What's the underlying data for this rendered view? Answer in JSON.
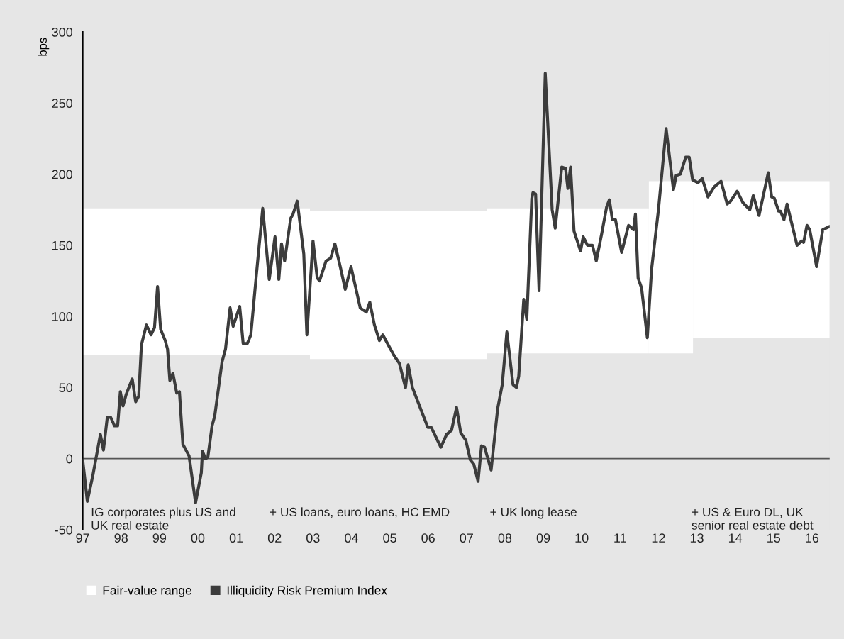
{
  "chart_data": {
    "type": "line",
    "ylabel": "bps",
    "xlim": [
      1997,
      2016.46
    ],
    "xticks": [
      {
        "value": 1997,
        "label": "97"
      },
      {
        "value": 1998,
        "label": "98"
      },
      {
        "value": 1999,
        "label": "99"
      },
      {
        "value": 2000,
        "label": "00"
      },
      {
        "value": 2001,
        "label": "01"
      },
      {
        "value": 2002,
        "label": "02"
      },
      {
        "value": 2003,
        "label": "03"
      },
      {
        "value": 2004,
        "label": "04"
      },
      {
        "value": 2005,
        "label": "05"
      },
      {
        "value": 2006,
        "label": "06"
      },
      {
        "value": 2007,
        "label": "07"
      },
      {
        "value": 2008,
        "label": "08"
      },
      {
        "value": 2009,
        "label": "09"
      },
      {
        "value": 2010,
        "label": "10"
      },
      {
        "value": 2011,
        "label": "11"
      },
      {
        "value": 2012,
        "label": "12"
      },
      {
        "value": 2013,
        "label": "13"
      },
      {
        "value": 2014,
        "label": "14"
      },
      {
        "value": 2015,
        "label": "15"
      },
      {
        "value": 2016,
        "label": "16"
      }
    ],
    "ylim": [
      -50,
      300
    ],
    "yticks": [
      -50,
      0,
      50,
      100,
      150,
      200,
      250,
      300
    ],
    "grid": false,
    "legend": "bottom left",
    "marker": "none",
    "line_style": "solid",
    "ref_lines": [
      {
        "axis": "y",
        "value": 0,
        "color": "#555555"
      }
    ],
    "annotations": [
      "IG corporates plus US and\nUK real estate",
      "+ US loans, euro loans, HC EMD",
      "+ UK long lease",
      "+ US & Euro DL, UK\nsenior real estate debt"
    ],
    "series": [
      {
        "name": "Fair-value range",
        "type": "bar",
        "color": "#ffffff",
        "x": [
          1999.96,
          2005.23,
          2009.645,
          2012.325,
          2014.68
        ],
        "base": [
          73,
          70,
          74,
          74,
          85
        ],
        "values": [
          103,
          104,
          102,
          121,
          110
        ]
      },
      {
        "name": "Illiquidity Risk Premium Index",
        "color": "#3c3c3c",
        "x": [
          1997.0,
          1997.12,
          1997.27,
          1997.46,
          1997.54,
          1997.64,
          1997.73,
          1997.83,
          1997.91,
          1997.98,
          1998.05,
          1998.13,
          1998.29,
          1998.38,
          1998.46,
          1998.53,
          1998.66,
          1998.78,
          1998.87,
          1998.95,
          1999.03,
          1999.15,
          1999.21,
          1999.27,
          1999.35,
          1999.45,
          1999.52,
          1999.61,
          1999.77,
          1999.94,
          2000.09,
          2000.12,
          2000.2,
          2000.26,
          2000.37,
          2000.44,
          2000.63,
          2000.72,
          2000.84,
          2000.92,
          2001.09,
          2001.18,
          2001.29,
          2001.38,
          2001.52,
          2001.69,
          2001.86,
          2002.01,
          2002.11,
          2002.18,
          2002.26,
          2002.42,
          2002.48,
          2002.59,
          2002.76,
          2002.84,
          2003.0,
          2003.11,
          2003.17,
          2003.34,
          2003.46,
          2003.57,
          2003.71,
          2003.84,
          2003.99,
          2004.23,
          2004.39,
          2004.48,
          2004.6,
          2004.73,
          2004.82,
          2005.1,
          2005.25,
          2005.41,
          2005.48,
          2005.59,
          2005.99,
          2006.08,
          2006.33,
          2006.48,
          2006.61,
          2006.74,
          2006.85,
          2006.98,
          2007.1,
          2007.19,
          2007.3,
          2007.39,
          2007.47,
          2007.64,
          2007.81,
          2007.93,
          2008.05,
          2008.21,
          2008.3,
          2008.36,
          2008.49,
          2008.57,
          2008.7,
          2008.73,
          2008.8,
          2008.89,
          2009.05,
          2009.23,
          2009.31,
          2009.48,
          2009.58,
          2009.64,
          2009.71,
          2009.8,
          2009.97,
          2010.04,
          2010.15,
          2010.28,
          2010.38,
          2010.52,
          2010.65,
          2010.72,
          2010.8,
          2010.88,
          2011.04,
          2011.22,
          2011.35,
          2011.4,
          2011.47,
          2011.56,
          2011.71,
          2011.82,
          2012.0,
          2012.2,
          2012.39,
          2012.46,
          2012.57,
          2012.71,
          2012.8,
          2012.89,
          2013.03,
          2013.14,
          2013.29,
          2013.45,
          2013.63,
          2013.79,
          2013.88,
          2014.05,
          2014.2,
          2014.38,
          2014.47,
          2014.62,
          2014.74,
          2014.86,
          2014.95,
          2015.02,
          2015.13,
          2015.18,
          2015.27,
          2015.35,
          2015.61,
          2015.73,
          2015.78,
          2015.87,
          2015.94,
          2016.12,
          2016.28,
          2016.44
        ],
        "values": [
          -1,
          -30,
          -11,
          17,
          6,
          29,
          29,
          23,
          23,
          47,
          37,
          45,
          56,
          40,
          44,
          80,
          94,
          87,
          92,
          121,
          91,
          83,
          77,
          55,
          60,
          46,
          47,
          10,
          2,
          -31,
          -10,
          5,
          0,
          1,
          23,
          30,
          68,
          77,
          106,
          93,
          107,
          81,
          81,
          87,
          128,
          176,
          126,
          156,
          126,
          151,
          139,
          169,
          172,
          181,
          144,
          87,
          153,
          127,
          125,
          139,
          141,
          151,
          135,
          119,
          135,
          106,
          103,
          110,
          94,
          83,
          87,
          73,
          67,
          50,
          66,
          50,
          22,
          22,
          8,
          17,
          20,
          36,
          18,
          13,
          -1,
          -4,
          -16,
          9,
          8,
          -8,
          35,
          52,
          89,
          52,
          50,
          58,
          112,
          98,
          183,
          187,
          186,
          118,
          271,
          175,
          162,
          205,
          204,
          190,
          205,
          160,
          146,
          156,
          150,
          150,
          139,
          158,
          177,
          182,
          168,
          168,
          145,
          164,
          161,
          172,
          127,
          120,
          85,
          133,
          175,
          232,
          189,
          199,
          200,
          212,
          212,
          196,
          194,
          197,
          184,
          191,
          195,
          179,
          181,
          188,
          180,
          175,
          185,
          171,
          186,
          201,
          184,
          183,
          174,
          174,
          168,
          179,
          150,
          153,
          152,
          164,
          161,
          135,
          161,
          163
        ]
      }
    ]
  }
}
